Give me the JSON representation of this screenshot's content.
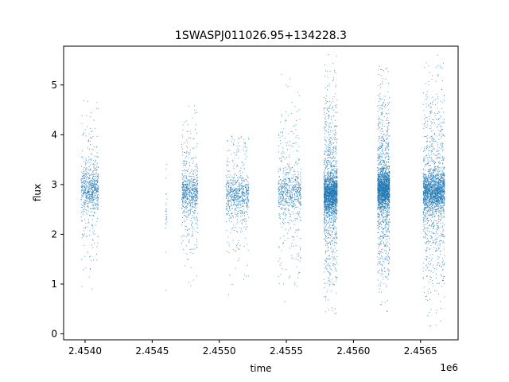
{
  "chart_data": {
    "type": "scatter",
    "title": "1SWASPJ011026.95+134228.3",
    "xlabel": "time",
    "ylabel": "flux",
    "x_offset_label": "1e6",
    "xlim": [
      2453840,
      2456780
    ],
    "ylim": [
      -0.12,
      5.78
    ],
    "x_ticks": [
      2454000,
      2454500,
      2455000,
      2455500,
      2456000,
      2456500
    ],
    "x_tick_labels": [
      "2.4540",
      "2.4545",
      "2.4550",
      "2.4555",
      "2.4560",
      "2.4565"
    ],
    "y_ticks": [
      0,
      1,
      2,
      3,
      4,
      5
    ],
    "y_tick_labels": [
      "0",
      "1",
      "2",
      "3",
      "4",
      "5"
    ],
    "grid": false,
    "series": [
      {
        "marker_color": "#1f77b4",
        "clusters": [
          {
            "x_start": 2453970,
            "x_end": 2454100,
            "median_flux": 2.9,
            "flux_min": 0.6,
            "flux_max": 4.75,
            "density": "medium"
          },
          {
            "x_start": 2454600,
            "x_end": 2454610,
            "median_flux": 2.5,
            "flux_min": 0.5,
            "flux_max": 3.7,
            "density": "sparse"
          },
          {
            "x_start": 2454720,
            "x_end": 2454840,
            "median_flux": 2.85,
            "flux_min": 0.9,
            "flux_max": 4.85,
            "density": "medium"
          },
          {
            "x_start": 2455050,
            "x_end": 2455220,
            "median_flux": 2.8,
            "flux_min": 0.35,
            "flux_max": 4.0,
            "density": "medium"
          },
          {
            "x_start": 2455440,
            "x_end": 2455610,
            "median_flux": 2.85,
            "flux_min": 0.25,
            "flux_max": 5.25,
            "density": "medium"
          },
          {
            "x_start": 2455780,
            "x_end": 2455880,
            "median_flux": 2.8,
            "flux_min": 0.25,
            "flux_max": 5.65,
            "density": "dense"
          },
          {
            "x_start": 2456180,
            "x_end": 2456270,
            "median_flux": 2.9,
            "flux_min": 0.3,
            "flux_max": 5.55,
            "density": "dense"
          },
          {
            "x_start": 2456520,
            "x_end": 2456680,
            "median_flux": 2.85,
            "flux_min": 0.1,
            "flux_max": 5.6,
            "density": "dense"
          }
        ]
      }
    ]
  }
}
